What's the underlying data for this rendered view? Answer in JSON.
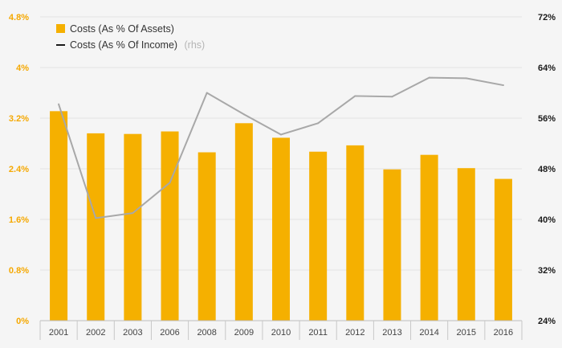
{
  "chart_data": {
    "type": "bar",
    "categories": [
      "2001",
      "2002",
      "2003",
      "2006",
      "2008",
      "2009",
      "2010",
      "2011",
      "2012",
      "2013",
      "2014",
      "2015",
      "2016"
    ],
    "series": [
      {
        "name": "Costs (As % Of Assets)",
        "type": "bar",
        "axis": "left",
        "color": "#f5b000",
        "values": [
          3.31,
          2.96,
          2.95,
          2.99,
          2.66,
          3.12,
          2.89,
          2.67,
          2.77,
          2.39,
          2.62,
          2.41,
          2.24
        ]
      },
      {
        "name": "Costs (As % Of Income)",
        "name_suffix": "(rhs)",
        "type": "line",
        "axis": "right",
        "color": "#a8a8a8",
        "values": [
          58.2,
          40.2,
          41.0,
          45.8,
          60.0,
          56.6,
          53.4,
          55.2,
          59.5,
          59.4,
          62.4,
          62.3,
          61.2
        ]
      }
    ],
    "y_left": {
      "ylim": [
        0,
        4.8
      ],
      "ticks": [
        "0%",
        "0.8%",
        "1.6%",
        "2.4%",
        "3.2%",
        "4%",
        "4.8%"
      ]
    },
    "y_right": {
      "ylim": [
        24,
        72
      ],
      "ticks": [
        "24%",
        "32%",
        "40%",
        "48%",
        "56%",
        "64%",
        "72%"
      ]
    },
    "grid": true,
    "legend_position": "top-left",
    "title": "",
    "xlabel": "",
    "ylabel": ""
  }
}
